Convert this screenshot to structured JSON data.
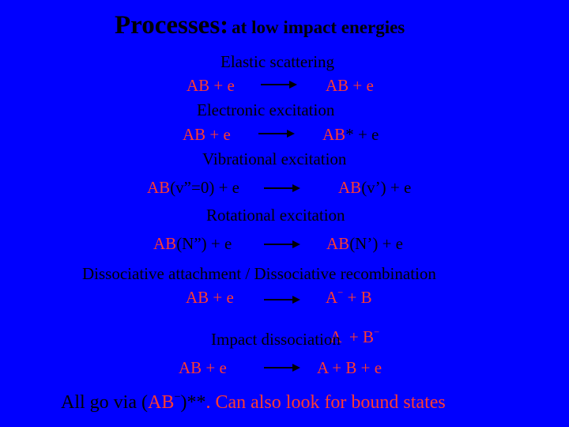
{
  "title": {
    "main": "Processes:",
    "sub": "at low impact energies"
  },
  "sections": [
    {
      "label": "Elastic scattering",
      "rows": [
        {
          "lhs_red": "AB + e",
          "rhs_red": "AB + e"
        }
      ]
    },
    {
      "label": "Electronic excitation",
      "rows": [
        {
          "lhs_red": "AB + e",
          "rhs_red": "AB",
          "rhs_black": "* + e"
        }
      ]
    },
    {
      "label": "Vibrational excitation",
      "rows": [
        {
          "lhs_red": "AB",
          "lhs_black": "(v”=0) + e",
          "rhs_red": "AB",
          "rhs_black": "(v’) + e"
        }
      ]
    },
    {
      "label": "Rotational excitation",
      "rows": [
        {
          "lhs_red": "AB",
          "lhs_black": "(N”) + e",
          "rhs_red": "AB",
          "rhs_black": "(N’) + e"
        }
      ]
    },
    {
      "label": "Dissociative attachment / Dissociative recombination",
      "rows": [
        {
          "lhs_red": "AB + e",
          "rhs_red": "A",
          "rhs_sup": "−",
          "rhs_tail": " + B"
        },
        {
          "rhs_red": "A  + B",
          "rhs_sup": "−"
        }
      ]
    },
    {
      "label": "Impact dissociation",
      "rows": [
        {
          "lhs_red": "AB + e",
          "rhs_red": "A + B + e"
        }
      ]
    }
  ],
  "footer": {
    "prefix": "All go via (",
    "ab": "AB",
    "sup": "−",
    "close": ")**",
    "rest": ". Can also look for bound states"
  },
  "colors": {
    "background": "#0000ff",
    "red": "#ff3b30",
    "black": "#000000"
  }
}
